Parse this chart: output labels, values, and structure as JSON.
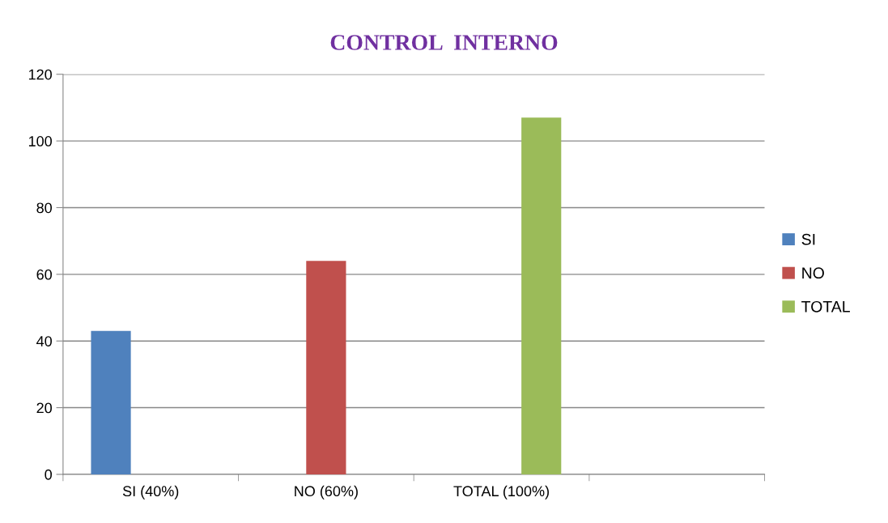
{
  "chart_data": {
    "type": "bar",
    "title": "CONTROL  INTERNO",
    "categories": [
      "SI (40%)",
      "NO (60%)",
      "TOTAL (100%)",
      null
    ],
    "series": [
      {
        "name": "SI",
        "color": "#4f81bd",
        "values": [
          43,
          null,
          null,
          null
        ]
      },
      {
        "name": "NO",
        "color": "#c0504d",
        "values": [
          null,
          64,
          null,
          null
        ]
      },
      {
        "name": "TOTAL",
        "color": "#9bbb59",
        "values": [
          null,
          null,
          107,
          null
        ]
      }
    ],
    "ylim": [
      0,
      120
    ],
    "yticks": [
      0,
      20,
      40,
      60,
      80,
      100,
      120
    ],
    "grid": "y",
    "legend": "right"
  }
}
